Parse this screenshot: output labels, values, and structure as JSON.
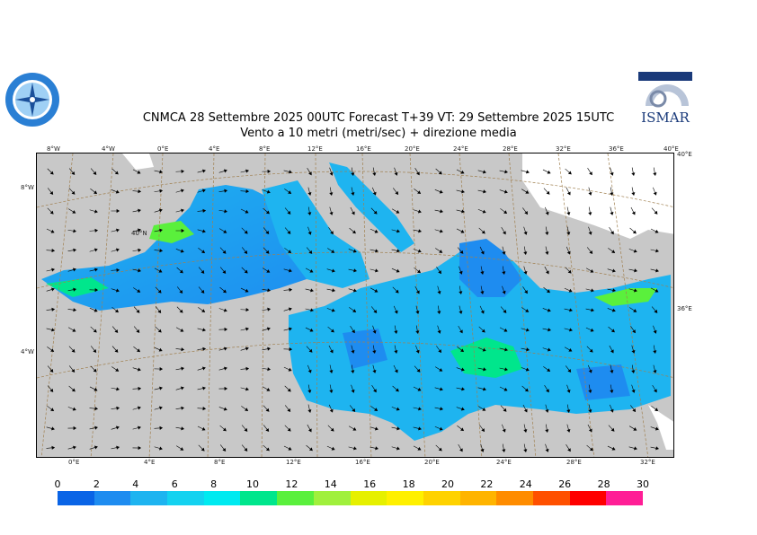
{
  "header": {
    "title_line1": "CNMCA 28 Settembre 2025 00UTC Forecast T+39 VT: 29 Settembre 2025 15UTC",
    "title_line2": "Vento a 10 metri (metri/sec) + direzione media",
    "logo_right_text": "ISMAR"
  },
  "top_ticks": [
    "8°W",
    "4°W",
    "0°E",
    "4°E",
    "8°E",
    "12°E",
    "16°E",
    "20°E",
    "24°E",
    "28°E",
    "32°E",
    "36°E",
    "40°E"
  ],
  "bottom_ticks": [
    "0°E",
    "4°E",
    "8°E",
    "12°E",
    "16°E",
    "20°E",
    "24°E",
    "28°E",
    "32°E"
  ],
  "left_ticks": [
    "8°W",
    "4°W"
  ],
  "right_ticks": [
    "40°E",
    "36°E"
  ],
  "inner_labels": [
    "40°N"
  ],
  "legend": {
    "labels": [
      "0",
      "2",
      "4",
      "6",
      "8",
      "10",
      "12",
      "14",
      "16",
      "18",
      "20",
      "22",
      "24",
      "26",
      "28",
      "30"
    ],
    "colors": [
      "#0a64e6",
      "#1e8cf0",
      "#1eb4f0",
      "#14d2f0",
      "#00eaf0",
      "#00e68c",
      "#5af03c",
      "#a0f03c",
      "#e6f000",
      "#fff000",
      "#ffd200",
      "#ffb400",
      "#ff8c00",
      "#ff5000",
      "#ff0000",
      "#ff1e96"
    ]
  },
  "colors": {
    "land": "#c8c8c8",
    "graticule": "#a08050",
    "sea_low": "#1e8cf0",
    "sea_mid": "#1eb4f0",
    "sea_high": "#00e68c"
  }
}
